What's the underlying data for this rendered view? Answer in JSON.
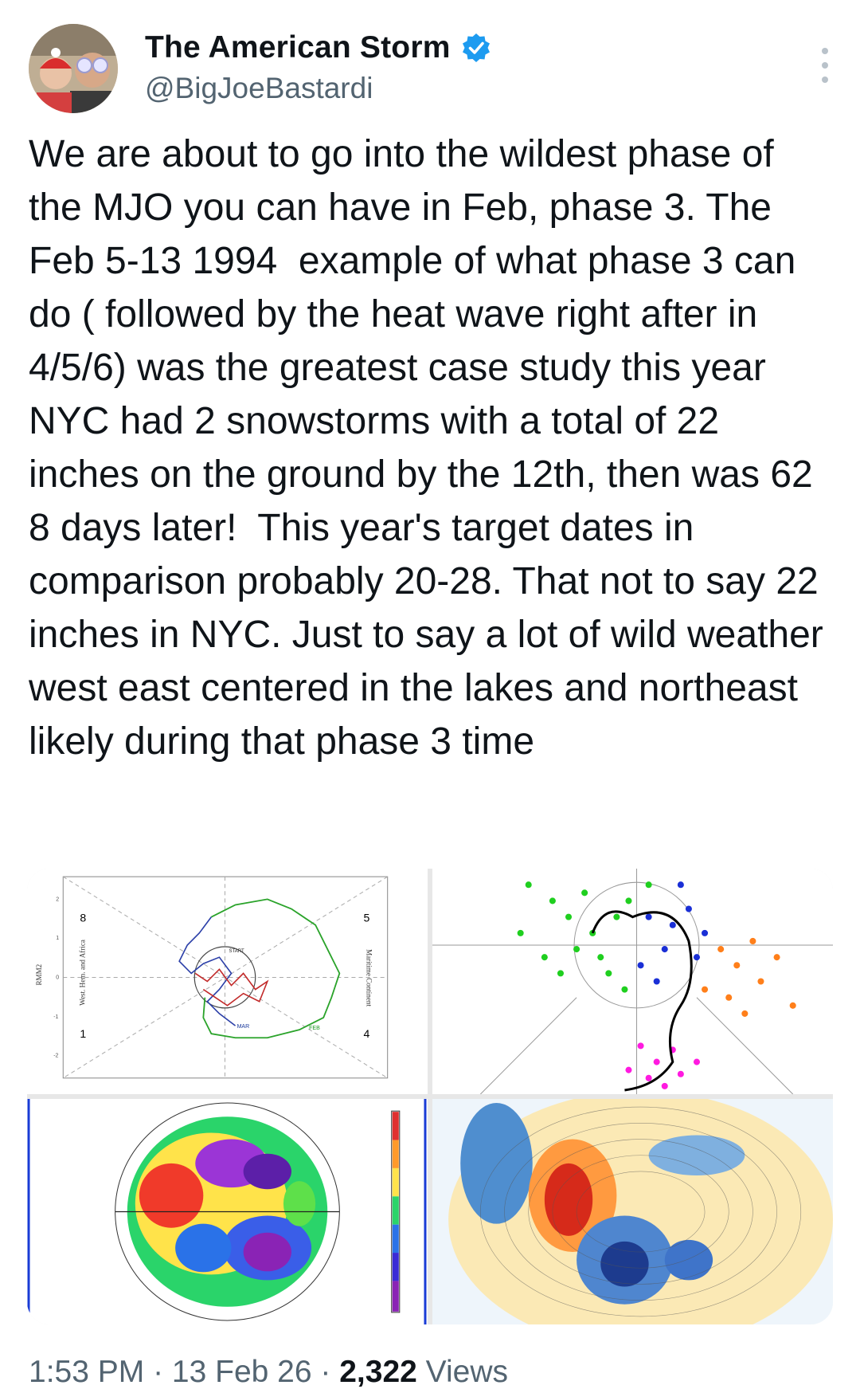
{
  "author": {
    "name": "The American Storm",
    "handle": "@BigJoeBastardi"
  },
  "tweet": {
    "text": "We are about to go into the wildest phase of the MJO you can have in Feb, phase 3. The Feb 5-13 1994  example of what phase 3 can do ( followed by the heat wave right after in 4/5/6) was the greatest case study this year NYC had 2 snowstorms with a total of 22 inches on the ground by the 12th, then was 62 8 days later!  This year's target dates in comparison probably 20-28. That not to say 22 inches in NYC. Just to say a lot of wild weather west east centered in the lakes and northeast likely during that phase 3 time"
  },
  "mjo_plot": {
    "phase_labels": [
      "8",
      "5",
      "1",
      "4"
    ],
    "axis_label": "RMM2",
    "region_left": "West. Hem. and Africa",
    "region_right": "Maritime Continent",
    "start_label": "START",
    "mar_label": "MAR",
    "feb_label": "FEB",
    "ticks": [
      "2",
      "1",
      "0",
      "-1",
      "-2"
    ]
  },
  "meta": {
    "time": "1:53 PM",
    "sep1": " · ",
    "date": "13 Feb 26",
    "sep2": " · ",
    "views_count": "2,322",
    "views_label": " Views"
  },
  "colors": {
    "verified": "#1d9bf0",
    "secondary_text": "#536471"
  }
}
